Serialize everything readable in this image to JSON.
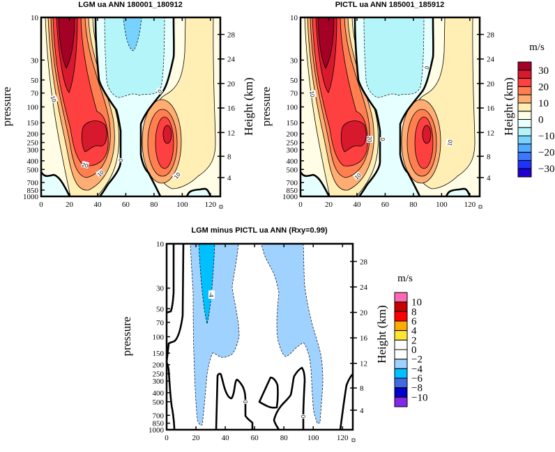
{
  "chart_data": [
    {
      "type": "heatmap",
      "title": "LGM ua ANN 180001_180912",
      "xlabel": "",
      "ylabel": "pressure",
      "y2label": "Height (km)",
      "xlim": [
        0,
        127
      ],
      "xticks": [
        0,
        20,
        40,
        60,
        80,
        100,
        120
      ],
      "ylim": [
        1000,
        10
      ],
      "yscale": "log",
      "yticks": [
        10,
        30,
        50,
        70,
        100,
        150,
        200,
        250,
        300,
        400,
        500,
        700,
        850,
        1000
      ],
      "y2ticks": [
        4,
        8,
        12,
        16,
        20,
        24,
        28
      ],
      "contour_interval": 5,
      "contour_labels": [
        "10",
        "20",
        "10",
        "0",
        "0",
        "10"
      ],
      "features": [
        {
          "name": "stratospheric jet",
          "lat": 18,
          "pressure": 10,
          "value_range": ">30"
        },
        {
          "name": "subtropical jet SH",
          "lat": 38,
          "pressure": 200,
          "value_range": "25-30"
        },
        {
          "name": "subtropical jet NH",
          "lat": 89,
          "pressure": 200,
          "value_range": "25-30"
        },
        {
          "name": "easterlies",
          "lat": 65,
          "pressure": 10,
          "value_range": "-15 to -10"
        }
      ]
    },
    {
      "type": "heatmap",
      "title": "PICTL ua ANN 185001_185912",
      "xlabel": "",
      "ylabel": "pressure",
      "y2label": "Height (km)",
      "xlim": [
        0,
        127
      ],
      "xticks": [
        0,
        20,
        40,
        60,
        80,
        100,
        120
      ],
      "ylim": [
        1000,
        10
      ],
      "yscale": "log",
      "yticks": [
        10,
        30,
        50,
        70,
        100,
        150,
        200,
        250,
        300,
        400,
        500,
        700,
        850,
        1000
      ],
      "y2ticks": [
        4,
        8,
        12,
        16,
        20,
        24,
        28
      ],
      "contour_interval": 5,
      "contour_labels": [
        "10",
        "20",
        "0",
        "0",
        "10",
        "10"
      ],
      "features": [
        {
          "name": "stratospheric jet",
          "lat": 18,
          "pressure": 10,
          "value_range": ">30"
        },
        {
          "name": "subtropical jet SH",
          "lat": 35,
          "pressure": 200,
          "value_range": "25-30"
        },
        {
          "name": "subtropical jet NH",
          "lat": 89,
          "pressure": 200,
          "value_range": "25-30"
        }
      ]
    },
    {
      "type": "heatmap",
      "title": "LGM minus PICTL ua ANN (Rxy=0.99)",
      "xlabel": "",
      "ylabel": "pressure",
      "y2label": "Height (km)",
      "xlim": [
        0,
        127
      ],
      "xticks": [
        0,
        20,
        40,
        60,
        80,
        100,
        120
      ],
      "ylim": [
        1000,
        10
      ],
      "yscale": "log",
      "yticks": [
        10,
        30,
        50,
        70,
        100,
        150,
        200,
        250,
        300,
        400,
        500,
        700,
        850,
        1000
      ],
      "y2ticks": [
        4,
        8,
        12,
        16,
        20,
        24,
        28
      ],
      "contour_interval": 2,
      "contour_labels": [
        "-4",
        "0",
        "0"
      ],
      "features": [
        {
          "name": "negative anomaly",
          "lat": 28,
          "pressure": 20,
          "value_range": "-6 to -4"
        },
        {
          "name": "negative anomaly",
          "lat": 85,
          "pressure": 30,
          "value_range": "-4 to -2"
        }
      ]
    }
  ],
  "colorbars": [
    {
      "units": "m/s",
      "labels": [
        "30",
        "20",
        "10",
        "0",
        "−10",
        "−20",
        "−30"
      ],
      "colors": [
        "#a50026",
        "#d7192d",
        "#ff4040",
        "#ff7f50",
        "#ffad72",
        "#ffefb4",
        "#fffde6",
        "#e6ffff",
        "#b4f5fa",
        "#78d2ff",
        "#50aaff",
        "#3c78ff",
        "#1e32ff",
        "#1e00d2"
      ]
    },
    {
      "units": "m/s",
      "labels": [
        "10",
        "8",
        "6",
        "4",
        "2",
        "0",
        "−2",
        "−4",
        "−6",
        "−8",
        "−10"
      ],
      "colors": [
        "#ff69b4",
        "#c80000",
        "#ff0000",
        "#ffaa00",
        "#ffe632",
        "#ffffff",
        "#ffffff",
        "#a0d2ff",
        "#00c0ff",
        "#4169e1",
        "#0000c8",
        "#8228e6"
      ]
    }
  ]
}
